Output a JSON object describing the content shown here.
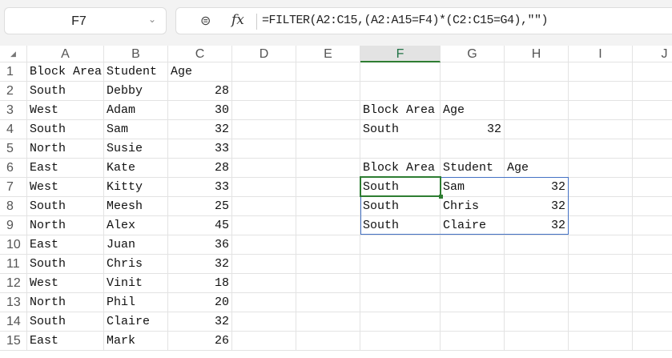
{
  "name_box": {
    "value": "F7"
  },
  "formula_bar": {
    "zoom_icon": "zoom-icon",
    "fx_label": "fx",
    "formula": "=FILTER(A2:C15,(A2:A15=F4)*(C2:C15=G4),\"\")"
  },
  "selected_column": "F",
  "columns": [
    "A",
    "B",
    "C",
    "D",
    "E",
    "F",
    "G",
    "H",
    "I",
    "J"
  ],
  "rows": [
    [
      "Block Area",
      "Student",
      "Age",
      "",
      "",
      "",
      "",
      "",
      "",
      ""
    ],
    [
      "South",
      "Debby",
      "28",
      "",
      "",
      "",
      "",
      "",
      "",
      ""
    ],
    [
      "West",
      "Adam",
      "30",
      "",
      "",
      "Block Area",
      "Age",
      "",
      "",
      ""
    ],
    [
      "South",
      "Sam",
      "32",
      "",
      "",
      "South",
      "32",
      "",
      "",
      ""
    ],
    [
      "North",
      "Susie",
      "33",
      "",
      "",
      "",
      "",
      "",
      "",
      ""
    ],
    [
      "East",
      "Kate",
      "28",
      "",
      "",
      "Block Area",
      "Student",
      "Age",
      "",
      ""
    ],
    [
      "West",
      "Kitty",
      "33",
      "",
      "",
      "South",
      "Sam",
      "32",
      "",
      ""
    ],
    [
      "South",
      "Meesh",
      "25",
      "",
      "",
      "South",
      "Chris",
      "32",
      "",
      ""
    ],
    [
      "North",
      "Alex",
      "45",
      "",
      "",
      "South",
      "Claire",
      "32",
      "",
      ""
    ],
    [
      "East",
      "Juan",
      "36",
      "",
      "",
      "",
      "",
      "",
      "",
      ""
    ],
    [
      "South",
      "Chris",
      "32",
      "",
      "",
      "",
      "",
      "",
      "",
      ""
    ],
    [
      "West",
      "Vinit",
      "18",
      "",
      "",
      "",
      "",
      "",
      "",
      ""
    ],
    [
      "North",
      "Phil",
      "20",
      "",
      "",
      "",
      "",
      "",
      "",
      ""
    ],
    [
      "South",
      "Claire",
      "32",
      "",
      "",
      "",
      "",
      "",
      "",
      ""
    ],
    [
      "East",
      "Mark",
      "26",
      "",
      "",
      "",
      "",
      "",
      "",
      ""
    ]
  ],
  "colors": {
    "accent": "#2e7d32",
    "spill_border": "#4472c4"
  }
}
